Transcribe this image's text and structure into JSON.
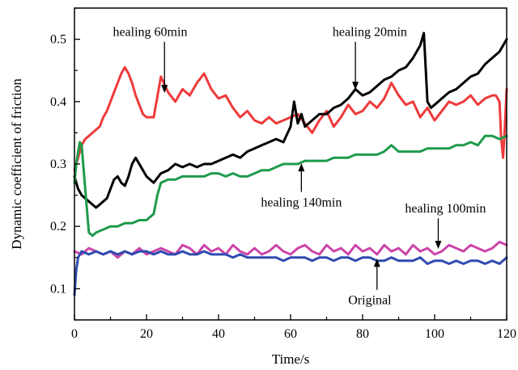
{
  "chart_data": {
    "type": "line",
    "xlabel": "Time/s",
    "ylabel": "Dynamic coefficient of friction",
    "xlim": [
      0,
      120
    ],
    "ylim": [
      0.05,
      0.55
    ],
    "xticks": [
      0,
      20,
      40,
      60,
      80,
      100,
      120
    ],
    "yticks": [
      0.1,
      0.2,
      0.3,
      0.4,
      0.5
    ],
    "xtick_labels": [
      "0",
      "20",
      "40",
      "60",
      "80",
      "100",
      "120"
    ],
    "ytick_labels": [
      "0.1",
      "0.2",
      "0.3",
      "0.4",
      "0.5"
    ],
    "grid": false,
    "legend": "none",
    "series": [
      {
        "name": "healing 60min",
        "color": "#ee3b3b",
        "x": [
          0,
          1,
          2,
          3,
          4,
          5,
          6,
          7,
          8,
          9,
          10,
          11,
          12,
          13,
          14,
          15,
          16,
          17,
          18,
          19,
          20,
          22,
          24,
          26,
          28,
          30,
          32,
          34,
          36,
          38,
          40,
          42,
          44,
          46,
          48,
          50,
          52,
          54,
          56,
          58,
          60,
          62,
          64,
          66,
          68,
          70,
          72,
          74,
          76,
          78,
          80,
          82,
          84,
          86,
          88,
          90,
          92,
          94,
          96,
          98,
          100,
          102,
          104,
          106,
          108,
          110,
          112,
          114,
          116,
          117,
          118,
          118.5,
          119,
          119.5,
          120
        ],
        "values": [
          0.29,
          0.31,
          0.33,
          0.34,
          0.345,
          0.35,
          0.355,
          0.36,
          0.375,
          0.385,
          0.4,
          0.415,
          0.43,
          0.445,
          0.455,
          0.445,
          0.43,
          0.41,
          0.395,
          0.38,
          0.375,
          0.375,
          0.44,
          0.415,
          0.4,
          0.42,
          0.41,
          0.43,
          0.445,
          0.42,
          0.405,
          0.41,
          0.39,
          0.375,
          0.385,
          0.37,
          0.365,
          0.375,
          0.365,
          0.37,
          0.375,
          0.38,
          0.365,
          0.35,
          0.37,
          0.385,
          0.36,
          0.375,
          0.395,
          0.38,
          0.385,
          0.4,
          0.39,
          0.405,
          0.43,
          0.41,
          0.395,
          0.4,
          0.375,
          0.39,
          0.37,
          0.385,
          0.4,
          0.395,
          0.4,
          0.41,
          0.395,
          0.405,
          0.41,
          0.41,
          0.4,
          0.34,
          0.31,
          0.36,
          0.42
        ]
      },
      {
        "name": "healing 20min",
        "color": "#000000",
        "x": [
          0,
          1,
          2,
          3,
          4,
          5,
          6,
          7,
          8,
          9,
          10,
          11,
          12,
          13,
          14,
          15,
          16,
          17,
          18,
          19,
          20,
          22,
          24,
          26,
          28,
          30,
          32,
          34,
          36,
          38,
          40,
          42,
          44,
          46,
          48,
          50,
          52,
          54,
          56,
          58,
          60,
          61,
          62,
          63,
          64,
          66,
          68,
          70,
          72,
          74,
          76,
          78,
          80,
          82,
          84,
          86,
          88,
          90,
          92,
          94,
          96,
          97,
          98,
          99,
          100,
          102,
          104,
          106,
          108,
          110,
          112,
          114,
          116,
          118,
          120
        ],
        "values": [
          0.28,
          0.26,
          0.25,
          0.245,
          0.24,
          0.235,
          0.23,
          0.235,
          0.24,
          0.245,
          0.26,
          0.275,
          0.28,
          0.27,
          0.265,
          0.28,
          0.3,
          0.31,
          0.3,
          0.29,
          0.28,
          0.27,
          0.285,
          0.29,
          0.3,
          0.295,
          0.3,
          0.295,
          0.3,
          0.3,
          0.305,
          0.31,
          0.315,
          0.31,
          0.32,
          0.325,
          0.33,
          0.335,
          0.34,
          0.335,
          0.36,
          0.4,
          0.365,
          0.38,
          0.36,
          0.37,
          0.38,
          0.38,
          0.39,
          0.395,
          0.405,
          0.42,
          0.41,
          0.415,
          0.425,
          0.435,
          0.44,
          0.45,
          0.455,
          0.47,
          0.49,
          0.51,
          0.4,
          0.39,
          0.395,
          0.405,
          0.415,
          0.42,
          0.43,
          0.44,
          0.445,
          0.46,
          0.47,
          0.48,
          0.5
        ]
      },
      {
        "name": "healing 140min",
        "color": "#1f9a4c",
        "x": [
          0,
          0.5,
          1,
          1.5,
          2,
          3,
          4,
          5,
          6,
          8,
          10,
          12,
          14,
          16,
          18,
          20,
          21,
          22,
          23,
          24,
          26,
          28,
          30,
          32,
          34,
          36,
          38,
          40,
          42,
          44,
          46,
          48,
          50,
          52,
          54,
          56,
          58,
          60,
          62,
          64,
          66,
          68,
          70,
          72,
          74,
          76,
          78,
          80,
          82,
          84,
          86,
          88,
          90,
          92,
          94,
          96,
          98,
          100,
          102,
          104,
          106,
          108,
          110,
          112,
          114,
          116,
          118,
          120
        ],
        "values": [
          0.27,
          0.3,
          0.32,
          0.335,
          0.33,
          0.26,
          0.19,
          0.185,
          0.19,
          0.195,
          0.2,
          0.2,
          0.205,
          0.205,
          0.21,
          0.21,
          0.215,
          0.22,
          0.25,
          0.27,
          0.275,
          0.275,
          0.28,
          0.28,
          0.28,
          0.28,
          0.285,
          0.285,
          0.28,
          0.285,
          0.28,
          0.28,
          0.285,
          0.29,
          0.29,
          0.295,
          0.3,
          0.3,
          0.3,
          0.305,
          0.305,
          0.305,
          0.305,
          0.31,
          0.31,
          0.31,
          0.315,
          0.315,
          0.315,
          0.315,
          0.32,
          0.33,
          0.32,
          0.32,
          0.32,
          0.32,
          0.325,
          0.325,
          0.325,
          0.325,
          0.33,
          0.33,
          0.335,
          0.33,
          0.345,
          0.345,
          0.34,
          0.345
        ]
      },
      {
        "name": "healing 100min",
        "color": "#cc44aa",
        "x": [
          0,
          2,
          4,
          6,
          8,
          10,
          12,
          14,
          16,
          18,
          20,
          22,
          24,
          26,
          28,
          30,
          32,
          34,
          36,
          38,
          40,
          42,
          44,
          46,
          48,
          50,
          52,
          54,
          56,
          58,
          60,
          62,
          64,
          66,
          68,
          70,
          72,
          74,
          76,
          78,
          80,
          82,
          84,
          86,
          88,
          90,
          92,
          94,
          96,
          98,
          100,
          102,
          104,
          106,
          108,
          110,
          112,
          114,
          116,
          118,
          120
        ],
        "values": [
          0.16,
          0.155,
          0.165,
          0.16,
          0.155,
          0.16,
          0.15,
          0.16,
          0.155,
          0.165,
          0.155,
          0.16,
          0.165,
          0.16,
          0.155,
          0.17,
          0.165,
          0.155,
          0.17,
          0.16,
          0.165,
          0.155,
          0.17,
          0.16,
          0.155,
          0.165,
          0.155,
          0.16,
          0.17,
          0.16,
          0.155,
          0.165,
          0.17,
          0.16,
          0.155,
          0.17,
          0.16,
          0.165,
          0.155,
          0.17,
          0.16,
          0.165,
          0.155,
          0.17,
          0.16,
          0.165,
          0.155,
          0.17,
          0.16,
          0.165,
          0.155,
          0.16,
          0.17,
          0.165,
          0.16,
          0.17,
          0.165,
          0.16,
          0.165,
          0.175,
          0.17
        ]
      },
      {
        "name": "Original",
        "color": "#2e4bb0",
        "x": [
          0,
          0.5,
          1,
          2,
          4,
          6,
          8,
          10,
          12,
          14,
          16,
          18,
          20,
          22,
          24,
          26,
          28,
          30,
          32,
          34,
          36,
          38,
          40,
          42,
          44,
          46,
          48,
          50,
          52,
          54,
          56,
          58,
          60,
          62,
          64,
          66,
          68,
          70,
          72,
          74,
          76,
          78,
          80,
          82,
          84,
          86,
          88,
          90,
          92,
          94,
          96,
          98,
          100,
          102,
          104,
          106,
          108,
          110,
          112,
          114,
          116,
          118,
          120
        ],
        "values": [
          0.09,
          0.13,
          0.15,
          0.16,
          0.155,
          0.16,
          0.155,
          0.16,
          0.155,
          0.16,
          0.155,
          0.16,
          0.16,
          0.155,
          0.16,
          0.155,
          0.155,
          0.16,
          0.155,
          0.155,
          0.16,
          0.155,
          0.155,
          0.155,
          0.15,
          0.155,
          0.15,
          0.15,
          0.15,
          0.15,
          0.15,
          0.145,
          0.15,
          0.15,
          0.15,
          0.145,
          0.15,
          0.15,
          0.145,
          0.15,
          0.15,
          0.145,
          0.15,
          0.15,
          0.145,
          0.145,
          0.15,
          0.145,
          0.145,
          0.145,
          0.15,
          0.14,
          0.145,
          0.145,
          0.14,
          0.145,
          0.14,
          0.145,
          0.145,
          0.14,
          0.145,
          0.14,
          0.15
        ]
      }
    ],
    "annotations": [
      {
        "text": "healing 60min",
        "series": "healing 60min",
        "point_x": 25,
        "point_y": 0.41,
        "text_x": 21,
        "text_y": 0.505
      },
      {
        "text": "healing 20min",
        "series": "healing 20min",
        "point_x": 78,
        "point_y": 0.415,
        "text_x": 82,
        "text_y": 0.505
      },
      {
        "text": "healing 140min",
        "series": "healing 140min",
        "point_x": 63,
        "point_y": 0.305,
        "text_x": 63,
        "text_y": 0.232
      },
      {
        "text": "healing 100min",
        "series": "healing 100min",
        "point_x": 101,
        "point_y": 0.16,
        "text_x": 103,
        "text_y": 0.222
      },
      {
        "text": "Original",
        "series": "Original",
        "point_x": 84,
        "point_y": 0.152,
        "text_x": 82,
        "text_y": 0.075
      }
    ]
  }
}
